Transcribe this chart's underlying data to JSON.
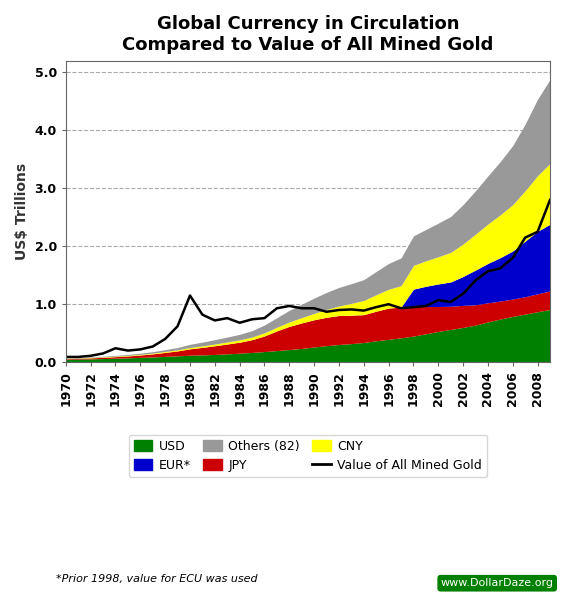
{
  "title": "Global Currency in Circulation\nCompared to Value of All Mined Gold",
  "ylabel": "US$ Trillions",
  "footnote": "*Prior 1998, value for ECU was used",
  "watermark": "www.DollarDaze.org",
  "ylim": [
    0,
    5.2
  ],
  "yticks": [
    0,
    1.0,
    2.0,
    3.0,
    4.0,
    5.0
  ],
  "years": [
    1970,
    1971,
    1972,
    1973,
    1974,
    1975,
    1976,
    1977,
    1978,
    1979,
    1980,
    1981,
    1982,
    1983,
    1984,
    1985,
    1986,
    1987,
    1988,
    1989,
    1990,
    1991,
    1992,
    1993,
    1994,
    1995,
    1996,
    1997,
    1998,
    1999,
    2000,
    2001,
    2002,
    2003,
    2004,
    2005,
    2006,
    2007,
    2008,
    2009
  ],
  "usd": [
    0.049,
    0.053,
    0.057,
    0.062,
    0.068,
    0.074,
    0.082,
    0.09,
    0.1,
    0.109,
    0.12,
    0.125,
    0.133,
    0.143,
    0.155,
    0.168,
    0.183,
    0.2,
    0.218,
    0.237,
    0.262,
    0.285,
    0.305,
    0.32,
    0.34,
    0.37,
    0.394,
    0.42,
    0.45,
    0.49,
    0.53,
    0.565,
    0.6,
    0.64,
    0.695,
    0.745,
    0.79,
    0.83,
    0.87,
    0.91
  ],
  "jpy": [
    0.01,
    0.013,
    0.017,
    0.021,
    0.027,
    0.033,
    0.042,
    0.053,
    0.068,
    0.085,
    0.11,
    0.13,
    0.15,
    0.17,
    0.19,
    0.22,
    0.27,
    0.34,
    0.4,
    0.44,
    0.47,
    0.49,
    0.5,
    0.49,
    0.48,
    0.51,
    0.54,
    0.53,
    0.51,
    0.47,
    0.43,
    0.4,
    0.38,
    0.35,
    0.33,
    0.31,
    0.3,
    0.3,
    0.31,
    0.32
  ],
  "eur": [
    0.0,
    0.0,
    0.0,
    0.0,
    0.0,
    0.0,
    0.0,
    0.0,
    0.0,
    0.0,
    0.0,
    0.0,
    0.0,
    0.0,
    0.0,
    0.0,
    0.0,
    0.0,
    0.0,
    0.0,
    0.0,
    0.0,
    0.0,
    0.0,
    0.0,
    0.0,
    0.0,
    0.0,
    0.3,
    0.35,
    0.39,
    0.42,
    0.5,
    0.6,
    0.68,
    0.75,
    0.83,
    0.96,
    1.08,
    1.15
  ],
  "cny": [
    0.005,
    0.006,
    0.007,
    0.008,
    0.009,
    0.01,
    0.011,
    0.013,
    0.016,
    0.019,
    0.023,
    0.026,
    0.03,
    0.035,
    0.04,
    0.046,
    0.054,
    0.063,
    0.076,
    0.092,
    0.11,
    0.135,
    0.165,
    0.205,
    0.245,
    0.285,
    0.325,
    0.37,
    0.41,
    0.44,
    0.47,
    0.51,
    0.56,
    0.62,
    0.68,
    0.74,
    0.8,
    0.87,
    0.96,
    1.05
  ],
  "others": [
    0.005,
    0.006,
    0.008,
    0.01,
    0.013,
    0.016,
    0.02,
    0.025,
    0.032,
    0.04,
    0.055,
    0.065,
    0.075,
    0.085,
    0.095,
    0.11,
    0.135,
    0.165,
    0.2,
    0.23,
    0.265,
    0.295,
    0.32,
    0.34,
    0.36,
    0.4,
    0.445,
    0.48,
    0.51,
    0.54,
    0.58,
    0.62,
    0.68,
    0.75,
    0.83,
    0.92,
    1.02,
    1.15,
    1.32,
    1.45
  ],
  "gold": [
    0.09,
    0.09,
    0.11,
    0.15,
    0.24,
    0.2,
    0.22,
    0.27,
    0.4,
    0.62,
    1.15,
    0.82,
    0.72,
    0.76,
    0.68,
    0.74,
    0.76,
    0.93,
    0.97,
    0.93,
    0.93,
    0.87,
    0.9,
    0.91,
    0.89,
    0.95,
    1.0,
    0.93,
    0.95,
    0.97,
    1.07,
    1.04,
    1.18,
    1.41,
    1.57,
    1.62,
    1.8,
    2.15,
    2.25,
    2.8
  ],
  "usd_color": "#008000",
  "jpy_color": "#cc0000",
  "eur_color": "#0000cc",
  "cny_color": "#ffff00",
  "others_color": "#999999",
  "gold_color": "#000000",
  "bg_color": "#ffffff",
  "grid_color": "#aaaaaa"
}
